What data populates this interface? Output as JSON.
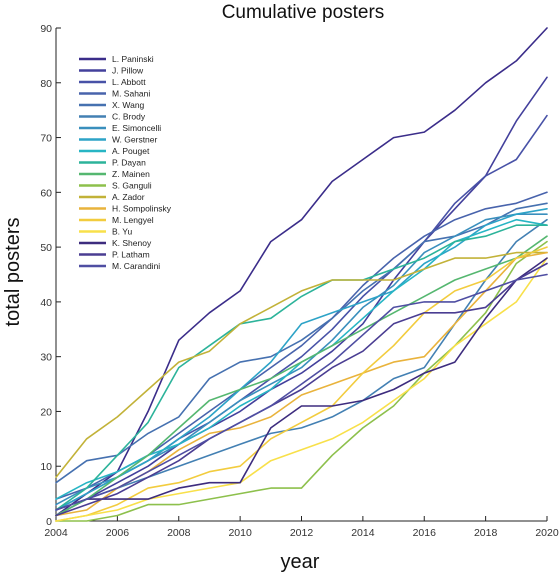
{
  "chart_data": {
    "type": "line",
    "title": "Cumulative posters",
    "xlabel": "year",
    "ylabel": "total posters",
    "xlim": [
      2004,
      2020
    ],
    "ylim": [
      0,
      90
    ],
    "xticks": [
      2004,
      2006,
      2008,
      2010,
      2012,
      2014,
      2016,
      2018,
      2020
    ],
    "yticks": [
      0,
      10,
      20,
      30,
      40,
      50,
      60,
      70,
      80,
      90
    ],
    "grid": false,
    "legend_position": "top-left",
    "x": [
      2004,
      2005,
      2006,
      2007,
      2008,
      2009,
      2010,
      2011,
      2012,
      2013,
      2014,
      2015,
      2016,
      2017,
      2018,
      2019,
      2020
    ],
    "series": [
      {
        "name": "L. Paninski",
        "color": "#3b2d8a",
        "values": [
          1,
          5,
          9,
          20,
          33,
          38,
          42,
          51,
          55,
          62,
          66,
          70,
          71,
          75,
          80,
          84,
          90
        ]
      },
      {
        "name": "J. Pillow",
        "color": "#43409c",
        "values": [
          1,
          4,
          7,
          10,
          14,
          17,
          20,
          24,
          27,
          31,
          36,
          44,
          51,
          57,
          63,
          73,
          81
        ]
      },
      {
        "name": "L. Abbott",
        "color": "#4852a7",
        "values": [
          2,
          5,
          8,
          11,
          15,
          18,
          22,
          26,
          30,
          35,
          41,
          46,
          51,
          58,
          63,
          66,
          74
        ]
      },
      {
        "name": "M. Sahani",
        "color": "#4863ac",
        "values": [
          4,
          6,
          9,
          12,
          16,
          20,
          24,
          28,
          32,
          37,
          43,
          48,
          52,
          55,
          57,
          58,
          60
        ]
      },
      {
        "name": "X. Wang",
        "color": "#4671b0",
        "values": [
          7,
          11,
          12,
          16,
          19,
          26,
          29,
          30,
          33,
          37,
          42,
          46,
          51,
          52,
          54,
          57,
          58
        ]
      },
      {
        "name": "C. Brody",
        "color": "#4380b3",
        "values": [
          1,
          4,
          6,
          8,
          10,
          12,
          14,
          16,
          17,
          19,
          22,
          26,
          28,
          36,
          44,
          51,
          55
        ]
      },
      {
        "name": "E. Simoncelli",
        "color": "#3a8fbd",
        "values": [
          3,
          6,
          8,
          11,
          14,
          18,
          22,
          25,
          28,
          33,
          39,
          43,
          49,
          52,
          55,
          56,
          56
        ]
      },
      {
        "name": "W. Gerstner",
        "color": "#2da3c7",
        "values": [
          2,
          5,
          8,
          11,
          15,
          19,
          24,
          29,
          36,
          38,
          40,
          42,
          47,
          50,
          54,
          56,
          57
        ]
      },
      {
        "name": "A. Pouget",
        "color": "#27b5c4",
        "values": [
          4,
          7,
          9,
          12,
          14,
          17,
          21,
          24,
          29,
          32,
          37,
          42,
          46,
          51,
          53,
          55,
          54
        ]
      },
      {
        "name": "P. Dayan",
        "color": "#2cb39a",
        "values": [
          2,
          6,
          12,
          18,
          28,
          32,
          36,
          37,
          41,
          44,
          44,
          46,
          48,
          51,
          52,
          54,
          54
        ]
      },
      {
        "name": "Z. Mainen",
        "color": "#55b770",
        "values": [
          1,
          4,
          8,
          12,
          17,
          22,
          24,
          26,
          29,
          32,
          35,
          38,
          41,
          44,
          46,
          48,
          52
        ]
      },
      {
        "name": "S. Ganguli",
        "color": "#8dc04c",
        "values": [
          0,
          0,
          1,
          3,
          3,
          4,
          5,
          6,
          6,
          12,
          17,
          21,
          27,
          32,
          38,
          47,
          51
        ]
      },
      {
        "name": "A. Zador",
        "color": "#c2b238",
        "values": [
          8,
          15,
          19,
          24,
          29,
          31,
          36,
          39,
          42,
          44,
          44,
          44,
          46,
          48,
          48,
          49,
          49
        ]
      },
      {
        "name": "H. Sompolinsky",
        "color": "#e9b33c",
        "values": [
          1,
          2,
          6,
          9,
          13,
          16,
          17,
          19,
          23,
          25,
          27,
          29,
          30,
          36,
          42,
          48,
          49
        ]
      },
      {
        "name": "M. Lengyel",
        "color": "#f2cc3e",
        "values": [
          0,
          1,
          3,
          6,
          7,
          9,
          10,
          15,
          18,
          21,
          27,
          32,
          38,
          42,
          44,
          48,
          50
        ]
      },
      {
        "name": "B. Yu",
        "color": "#f8e04a",
        "values": [
          0,
          1,
          2,
          4,
          5,
          6,
          7,
          11,
          13,
          15,
          18,
          22,
          26,
          32,
          36,
          40,
          48
        ]
      },
      {
        "name": "K. Shenoy",
        "color": "#3d2c7e",
        "values": [
          2,
          4,
          4,
          4,
          6,
          7,
          7,
          17,
          21,
          21,
          22,
          24,
          27,
          29,
          37,
          44,
          48
        ]
      },
      {
        "name": "P. Latham",
        "color": "#4a3d92",
        "values": [
          1,
          3,
          5,
          8,
          11,
          15,
          18,
          21,
          24,
          28,
          31,
          36,
          38,
          38,
          39,
          44,
          47
        ]
      },
      {
        "name": "M. Carandini",
        "color": "#4f4ea2",
        "values": [
          2,
          4,
          6,
          9,
          12,
          15,
          18,
          21,
          25,
          29,
          34,
          39,
          40,
          40,
          42,
          44,
          45
        ]
      }
    ]
  }
}
